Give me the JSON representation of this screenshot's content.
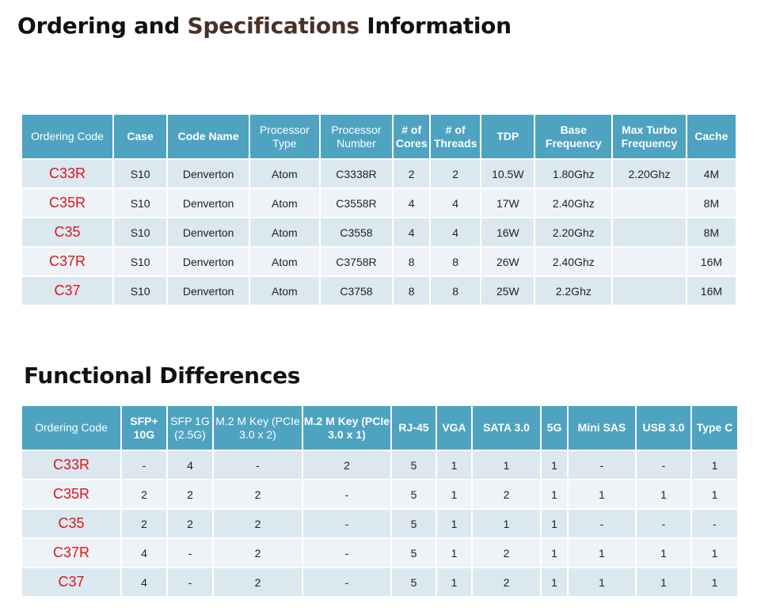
{
  "title": {
    "part1": "Ordering and ",
    "part2": "Specifications",
    "part3": " Information"
  },
  "spec_table": {
    "headers": [
      "Ordering Code",
      "Case",
      "Code Name",
      "Processor Type",
      "Processor Number",
      "# of Cores",
      "# of Threads",
      "TDP",
      "Base Frequency",
      "Max Turbo Frequency",
      "Cache"
    ],
    "rows": [
      [
        "C33R",
        "S10",
        "Denverton",
        "Atom",
        "C3338R",
        "2",
        "2",
        "10.5W",
        "1.80Ghz",
        "2.20Ghz",
        "4M"
      ],
      [
        "C35R",
        "S10",
        "Denverton",
        "Atom",
        "C3558R",
        "4",
        "4",
        "17W",
        "2.40Ghz",
        "",
        "8M"
      ],
      [
        "C35",
        "S10",
        "Denverton",
        "Atom",
        "C3558",
        "4",
        "4",
        "16W",
        "2.20Ghz",
        "",
        "8M"
      ],
      [
        "C37R",
        "S10",
        "Denverton",
        "Atom",
        "C3758R",
        "8",
        "8",
        "26W",
        "2.40Ghz",
        "",
        "16M"
      ],
      [
        "C37",
        "S10",
        "Denverton",
        "Atom",
        "C3758",
        "8",
        "8",
        "25W",
        "2.2Ghz",
        "",
        "16M"
      ]
    ]
  },
  "functional_title": "Functional Differences",
  "func_table": {
    "headers": [
      "Ordering Code",
      "SFP+ 10G",
      "SFP 1G (2.5G)",
      "M.2 M Key (PCIe 3.0 x 2)",
      "M.2 M Key (PCIe 3.0 x 1)",
      "RJ-45",
      "VGA",
      "SATA 3.0",
      "5G",
      "Mini SAS",
      "USB 3.0",
      "Type C"
    ],
    "rows": [
      [
        "C33R",
        "-",
        "4",
        "-",
        "2",
        "5",
        "1",
        "1",
        "1",
        "-",
        "-",
        "1"
      ],
      [
        "C35R",
        "2",
        "2",
        "2",
        "-",
        "5",
        "1",
        "2",
        "1",
        "1",
        "1",
        "1"
      ],
      [
        "C35",
        "2",
        "2",
        "2",
        "-",
        "5",
        "1",
        "1",
        "1",
        "-",
        "-",
        "-"
      ],
      [
        "C37R",
        "4",
        "-",
        "2",
        "-",
        "5",
        "1",
        "2",
        "1",
        "1",
        "1",
        "1"
      ],
      [
        "C37",
        "4",
        "-",
        "2",
        "-",
        "5",
        "1",
        "2",
        "1",
        "1",
        "1",
        "1"
      ]
    ]
  }
}
